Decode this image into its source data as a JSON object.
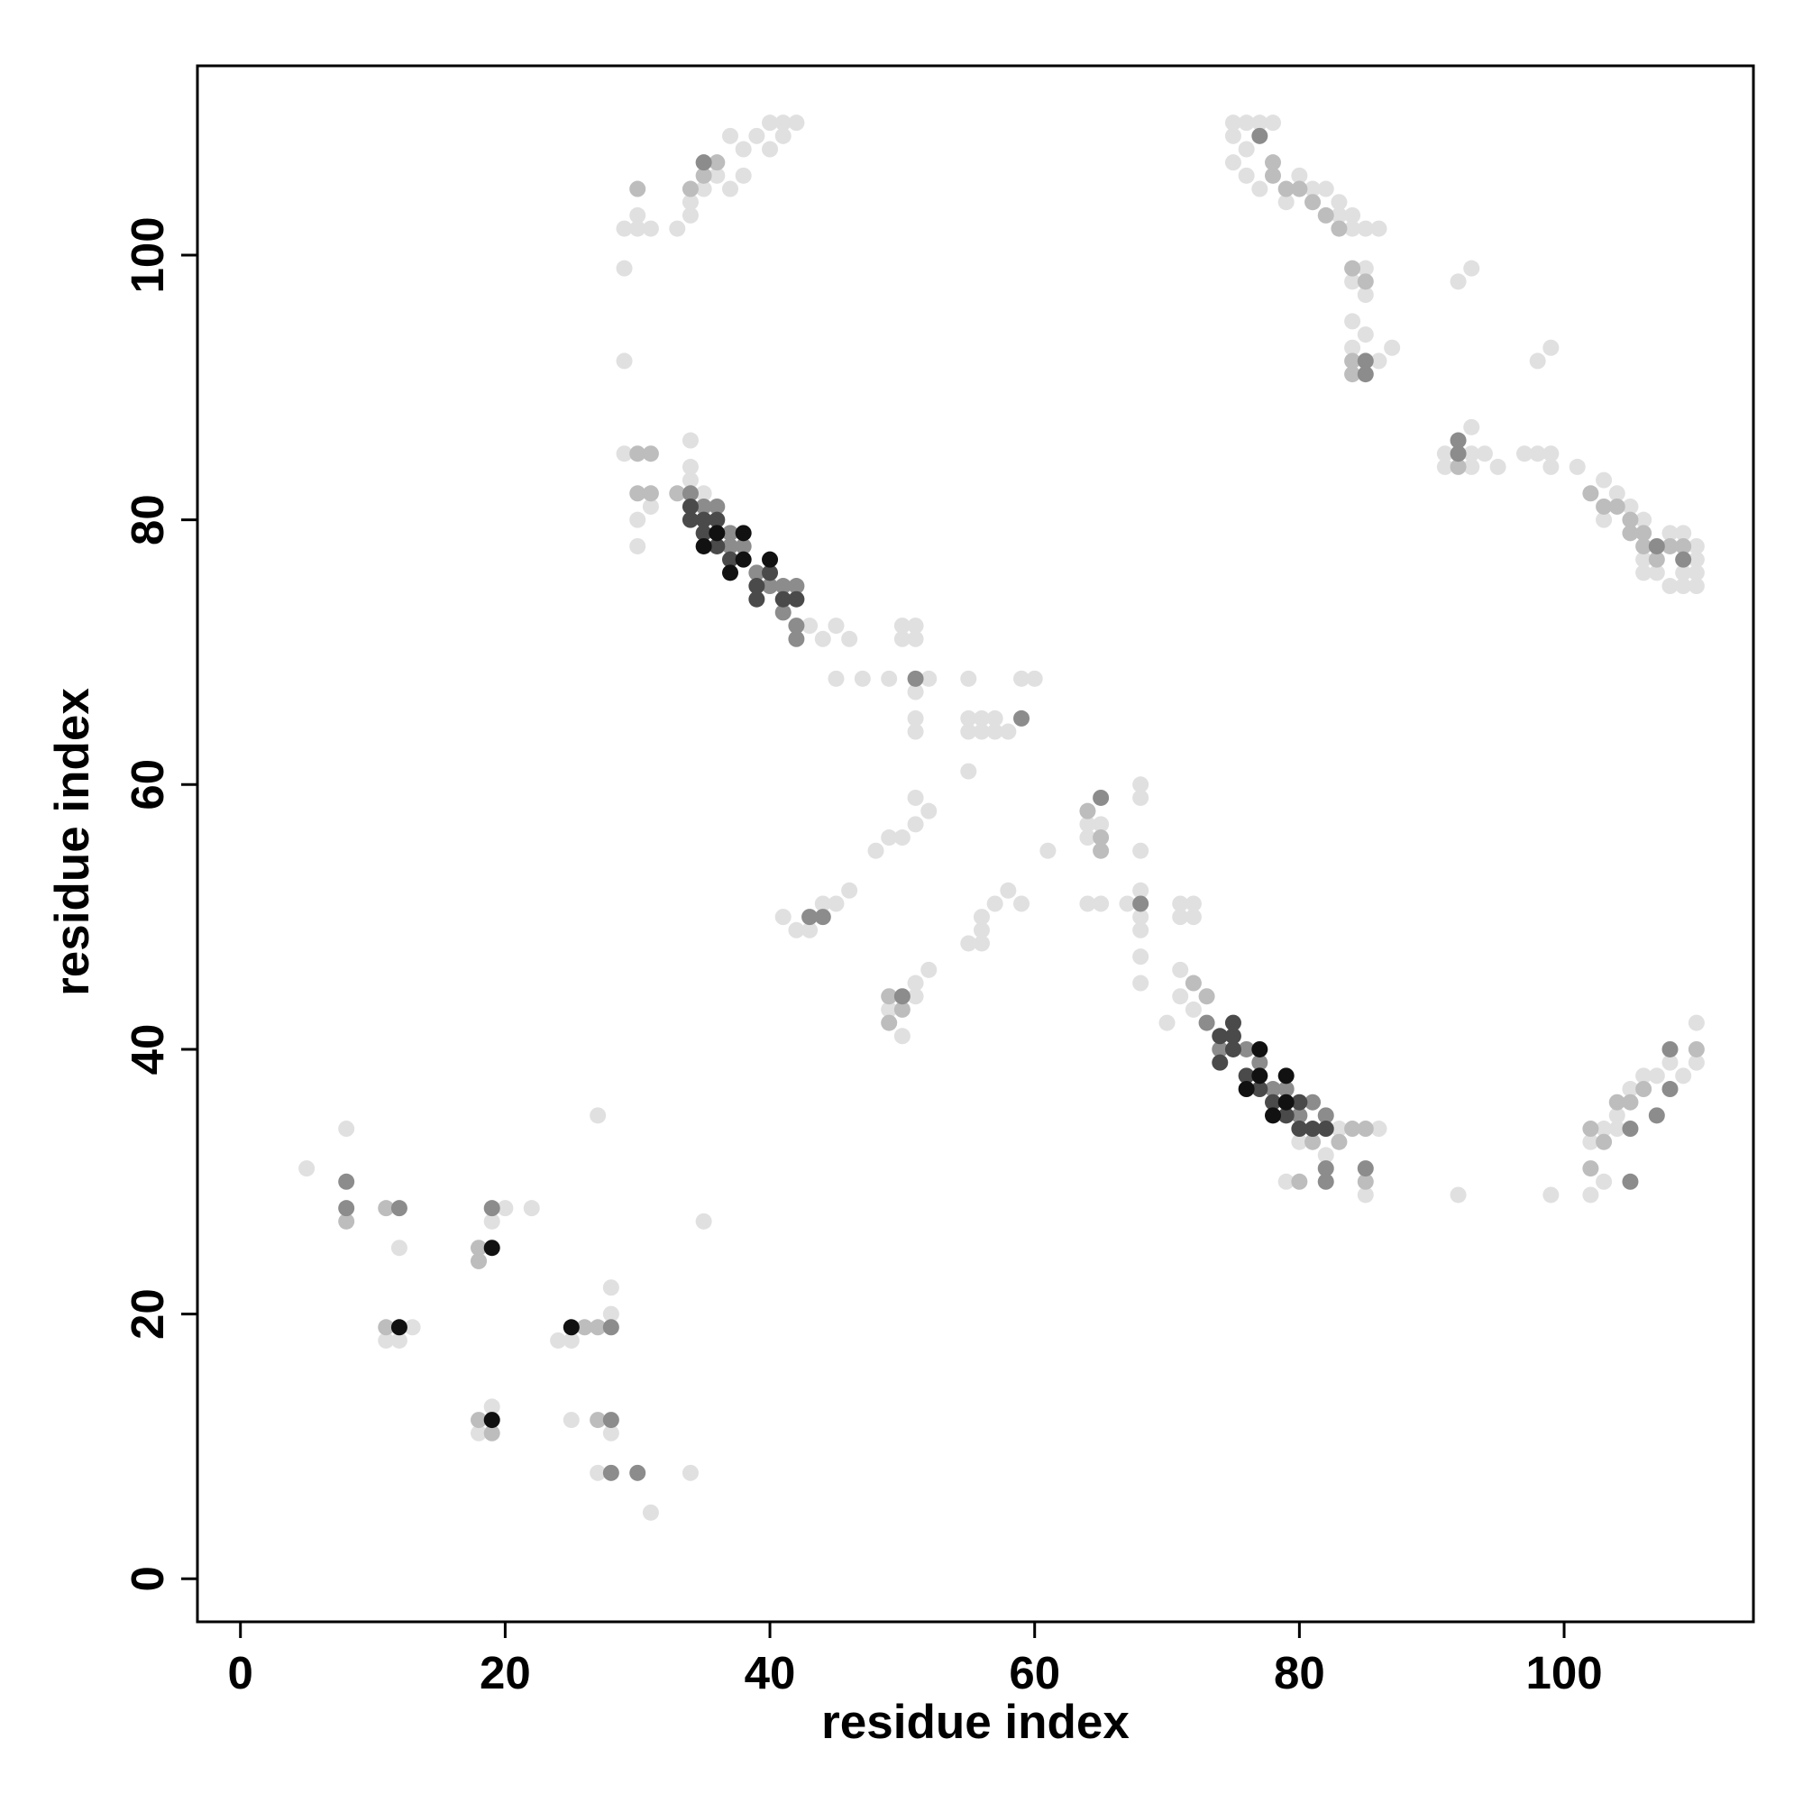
{
  "chart_data": {
    "type": "scatter",
    "xlabel": "residue index",
    "ylabel": "residue index",
    "xlim": [
      -3.25,
      114.3
    ],
    "ylim": [
      -3.25,
      114.3
    ],
    "xticks": [
      0,
      20,
      40,
      60,
      80,
      100
    ],
    "yticks": [
      0,
      20,
      40,
      60,
      80,
      100
    ],
    "series": [
      {
        "color": "#e0e0e0",
        "x": [
          5,
          8,
          11,
          12,
          13,
          12,
          20,
          22,
          18,
          18,
          19,
          19,
          24,
          25,
          25,
          27,
          27,
          28,
          28,
          28,
          29,
          29,
          29,
          30,
          30,
          31,
          30,
          30,
          29,
          31,
          33,
          34,
          34,
          35,
          36,
          37,
          38,
          38,
          39,
          40,
          41,
          41,
          42,
          40,
          37,
          31,
          34,
          35,
          34,
          34,
          34,
          35,
          43,
          44,
          45,
          46,
          45,
          47,
          49,
          50,
          50,
          51,
          51,
          52,
          51,
          51,
          51,
          55,
          55,
          55,
          56,
          56,
          57,
          57,
          58,
          59,
          60,
          55,
          61,
          49,
          50,
          48,
          51,
          52,
          51,
          46,
          45,
          44,
          41,
          42,
          43,
          52,
          51,
          51,
          50,
          49,
          55,
          56,
          56,
          56,
          57,
          58,
          59,
          64,
          64,
          64,
          65,
          65,
          67,
          68,
          68,
          68,
          68,
          68,
          68,
          68,
          68,
          71,
          72,
          71,
          72,
          71,
          71,
          72,
          70,
          75,
          76,
          77,
          78,
          75,
          76,
          75,
          76,
          77,
          79,
          80,
          81,
          82,
          83,
          83,
          84,
          84,
          85,
          86,
          84,
          85,
          85,
          84,
          84,
          85,
          87,
          86,
          92,
          93,
          98,
          99,
          91,
          91,
          93,
          93,
          93,
          94,
          95,
          97,
          98,
          99,
          99,
          101,
          103,
          104,
          103,
          105,
          106,
          106,
          106,
          107,
          108,
          108,
          109,
          109,
          109,
          110,
          110,
          110,
          110,
          110,
          110,
          109,
          108,
          107,
          106,
          105,
          104,
          103,
          104,
          102,
          102,
          103,
          99,
          92,
          83,
          86,
          85,
          82,
          80,
          79
        ],
        "values": [
          31,
          34,
          18,
          18,
          19,
          25,
          28,
          28,
          11,
          24,
          13,
          27,
          18,
          12,
          18,
          8,
          35,
          22,
          20,
          11,
          99,
          92,
          102,
          103,
          102,
          102,
          80,
          78,
          85,
          81,
          102,
          103,
          104,
          105,
          106,
          105,
          106,
          108,
          109,
          110,
          109,
          110,
          110,
          108,
          109,
          5,
          8,
          27,
          83,
          84,
          86,
          82,
          72,
          71,
          72,
          71,
          68,
          68,
          68,
          72,
          71,
          72,
          71,
          68,
          67,
          65,
          64,
          68,
          65,
          64,
          65,
          64,
          65,
          64,
          64,
          68,
          68,
          61,
          55,
          56,
          56,
          55,
          57,
          58,
          59,
          52,
          51,
          51,
          50,
          49,
          49,
          46,
          45,
          44,
          41,
          43,
          48,
          48,
          49,
          50,
          51,
          52,
          51,
          57,
          56,
          51,
          51,
          57,
          51,
          52,
          49,
          50,
          47,
          45,
          55,
          59,
          60,
          51,
          51,
          50,
          50,
          46,
          44,
          43,
          42,
          110,
          110,
          110,
          110,
          109,
          108,
          107,
          106,
          105,
          104,
          106,
          105,
          105,
          104,
          103,
          103,
          102,
          102,
          102,
          98,
          99,
          97,
          95,
          93,
          94,
          93,
          92,
          98,
          99,
          92,
          93,
          85,
          84,
          87,
          85,
          84,
          85,
          84,
          85,
          85,
          84,
          85,
          84,
          83,
          82,
          80,
          81,
          80,
          77,
          76,
          76,
          75,
          79,
          79,
          76,
          75,
          75,
          76,
          77,
          78,
          42,
          39,
          38,
          39,
          38,
          38,
          37,
          35,
          34,
          34,
          33,
          29,
          30,
          29,
          29,
          34,
          34,
          29,
          32,
          33,
          30
        ]
      },
      {
        "color": "#bdbdbd",
        "x": [
          11,
          18,
          19,
          27,
          27,
          34,
          30,
          35,
          36,
          78,
          78,
          79,
          80,
          81,
          82,
          83,
          84,
          85,
          92,
          102,
          103,
          104,
          105,
          105,
          106,
          107,
          106,
          108,
          109,
          102,
          103,
          104,
          105,
          106,
          110,
          33,
          30,
          31,
          30,
          31,
          50,
          49,
          64,
          65,
          73,
          72,
          83,
          84,
          85,
          81,
          80,
          49,
          65,
          102,
          84,
          84,
          26,
          85,
          11,
          8,
          18,
          18
        ],
        "values": [
          19,
          25,
          11,
          19,
          12,
          105,
          105,
          106,
          107,
          107,
          106,
          105,
          105,
          104,
          103,
          102,
          99,
          98,
          84,
          82,
          81,
          81,
          80,
          79,
          79,
          77,
          78,
          78,
          78,
          34,
          33,
          36,
          36,
          37,
          40,
          82,
          85,
          85,
          82,
          82,
          43,
          42,
          58,
          56,
          44,
          45,
          33,
          34,
          34,
          33,
          30,
          44,
          55,
          31,
          92,
          91,
          19,
          30,
          28,
          27,
          12,
          24
        ]
      },
      {
        "color": "#8c8c8c",
        "x": [
          34,
          36,
          35,
          37,
          38,
          39,
          40,
          41,
          42,
          41,
          42,
          42,
          43,
          44,
          59,
          65,
          50,
          51,
          77,
          85,
          85,
          107,
          109,
          108,
          107,
          105,
          73,
          74,
          76,
          78,
          79,
          81,
          82,
          80,
          77,
          37,
          12,
          19,
          28,
          28,
          8,
          8,
          35,
          92,
          92,
          68,
          82,
          82,
          85,
          105,
          108,
          28,
          30
        ],
        "values": [
          82,
          81,
          81,
          79,
          78,
          76,
          75,
          75,
          75,
          73,
          72,
          71,
          50,
          50,
          65,
          59,
          44,
          68,
          109,
          92,
          91,
          78,
          77,
          37,
          35,
          34,
          42,
          40,
          40,
          37,
          37,
          36,
          35,
          35,
          39,
          78,
          28,
          28,
          19,
          12,
          30,
          28,
          107,
          86,
          85,
          51,
          31,
          30,
          31,
          30,
          40,
          8,
          8
        ]
      },
      {
        "color": "#4a4a4a",
        "x": [
          34,
          34,
          35,
          36,
          36,
          37,
          39,
          39,
          40,
          41,
          42,
          74,
          74,
          75,
          75,
          76,
          78,
          80,
          81,
          82,
          80,
          75,
          77,
          35,
          79
        ],
        "values": [
          80,
          81,
          79,
          80,
          78,
          77,
          75,
          74,
          76,
          74,
          74,
          39,
          41,
          40,
          42,
          38,
          36,
          34,
          34,
          34,
          36,
          41,
          37,
          80,
          35
        ]
      },
      {
        "color": "#111111",
        "x": [
          12,
          19,
          25,
          19,
          35,
          36,
          37,
          38,
          38,
          40,
          77,
          79,
          76,
          78,
          79,
          77
        ],
        "values": [
          19,
          25,
          19,
          12,
          78,
          79,
          76,
          77,
          79,
          77,
          40,
          38,
          37,
          35,
          36,
          38
        ]
      }
    ]
  }
}
